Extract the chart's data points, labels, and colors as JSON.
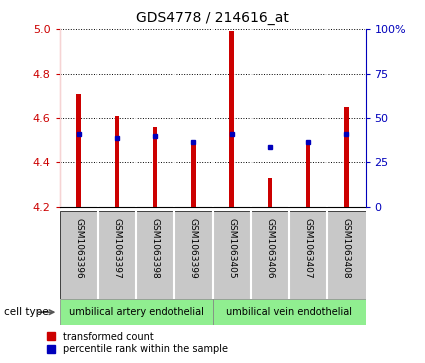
{
  "title": "GDS4778 / 214616_at",
  "samples": [
    "GSM1063396",
    "GSM1063397",
    "GSM1063398",
    "GSM1063399",
    "GSM1063405",
    "GSM1063406",
    "GSM1063407",
    "GSM1063408"
  ],
  "red_values": [
    4.71,
    4.61,
    4.56,
    4.49,
    4.99,
    4.33,
    4.49,
    4.65
  ],
  "blue_values": [
    4.53,
    4.51,
    4.52,
    4.49,
    4.53,
    4.47,
    4.49,
    4.53
  ],
  "ylim_left": [
    4.2,
    5.0
  ],
  "ylim_right": [
    0,
    100
  ],
  "right_ticks": [
    0,
    25,
    50,
    75,
    100
  ],
  "right_labels": [
    "0",
    "25",
    "50",
    "75",
    "100%"
  ],
  "left_ticks": [
    4.2,
    4.4,
    4.6,
    4.8,
    5.0
  ],
  "cell_type_groups": [
    {
      "label": "umbilical artery endothelial",
      "color": "#90EE90",
      "start": 0,
      "end": 4
    },
    {
      "label": "umbilical vein endothelial",
      "color": "#90EE90",
      "start": 4,
      "end": 8
    }
  ],
  "legend_red": "transformed count",
  "legend_blue": "percentile rank within the sample",
  "cell_type_label": "cell type",
  "bar_bottom": 4.2,
  "bar_width": 0.12,
  "grid_color": "#000000",
  "red_color": "#CC0000",
  "blue_color": "#0000BB",
  "left_axis_color": "#CC0000",
  "right_axis_color": "#0000BB",
  "sample_box_color": "#C8C8C8",
  "white_color": "#FFFFFF"
}
